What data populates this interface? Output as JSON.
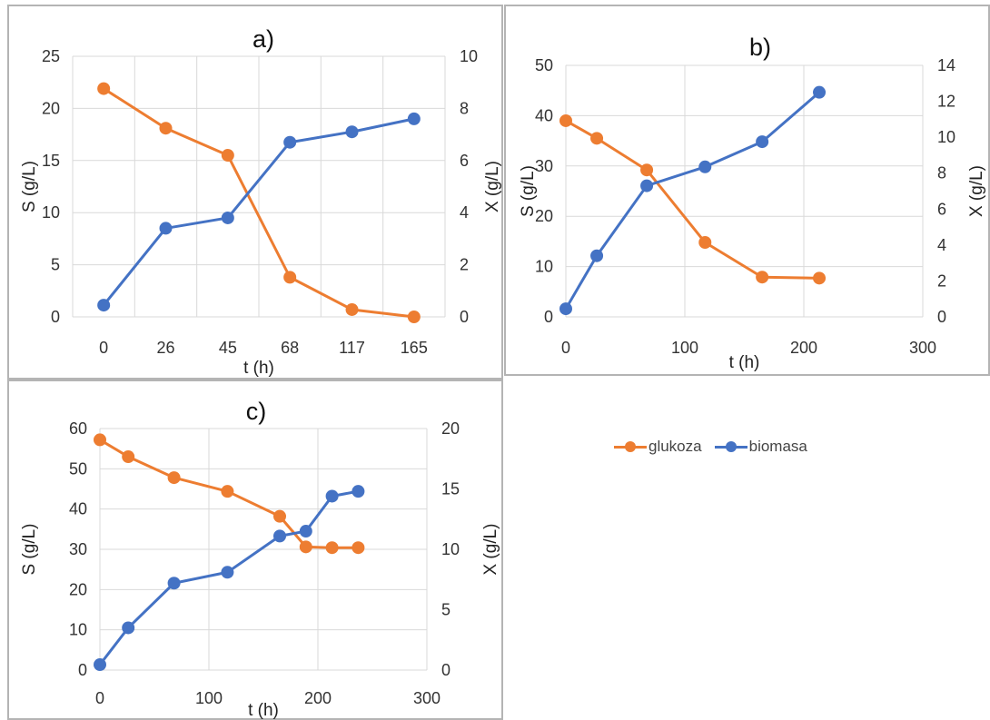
{
  "colors": {
    "glukoza": "#ed7d31",
    "biomasa": "#4472c4",
    "grid": "#d9d9d9",
    "border": "#b4b4b4"
  },
  "legend": {
    "items": [
      {
        "label": "glukoza",
        "color": "#ed7d31"
      },
      {
        "label": "biomasa",
        "color": "#4472c4"
      }
    ],
    "position": "right-middle"
  },
  "chart_data": [
    {
      "id": "a",
      "type": "line",
      "title": "a)",
      "xlabel": "t (h)",
      "ylabel": "S (g/L)",
      "y2label": "X (g/L)",
      "x_axis_type": "category",
      "categories": [
        "0",
        "26",
        "45",
        "68",
        "117",
        "165"
      ],
      "ylim": [
        0,
        25
      ],
      "yticks": [
        0,
        5,
        10,
        15,
        20,
        25
      ],
      "y2lim": [
        0,
        10
      ],
      "y2ticks": [
        0,
        2,
        4,
        6,
        8,
        10
      ],
      "grid": true,
      "series": [
        {
          "name": "glukoza",
          "axis": "left",
          "values": [
            21.9,
            18.1,
            15.5,
            3.8,
            0.7,
            0.0
          ]
        },
        {
          "name": "biomasa",
          "axis": "right",
          "values": [
            0.45,
            3.4,
            3.8,
            6.7,
            7.1,
            7.6
          ]
        }
      ]
    },
    {
      "id": "b",
      "type": "scatter",
      "title": "b)",
      "xlabel": "t (h)",
      "ylabel": "S (g/L)",
      "y2label": "X (g/L)",
      "xlim": [
        0,
        300
      ],
      "xticks": [
        0,
        100,
        200,
        300
      ],
      "ylim": [
        0,
        50
      ],
      "yticks": [
        0,
        10,
        20,
        30,
        40,
        50
      ],
      "y2lim": [
        0,
        14
      ],
      "y2ticks": [
        0,
        2,
        4,
        6,
        8,
        10,
        12,
        14
      ],
      "grid": true,
      "series": [
        {
          "name": "glukoza",
          "axis": "left",
          "x": [
            0,
            26,
            68,
            117,
            165,
            213
          ],
          "values": [
            39.0,
            35.5,
            29.2,
            14.8,
            7.9,
            7.7
          ]
        },
        {
          "name": "biomasa",
          "axis": "right",
          "x": [
            0,
            26,
            68,
            117,
            165,
            213
          ],
          "values": [
            0.45,
            3.4,
            7.3,
            8.35,
            9.75,
            12.5
          ]
        }
      ]
    },
    {
      "id": "c",
      "type": "scatter",
      "title": "c)",
      "xlabel": "t (h)",
      "ylabel": "S (g/L)",
      "y2label": "X (g/L)",
      "xlim": [
        0,
        300
      ],
      "xticks": [
        0,
        100,
        200,
        300
      ],
      "ylim": [
        0,
        60
      ],
      "yticks": [
        0,
        10,
        20,
        30,
        40,
        50,
        60
      ],
      "y2lim": [
        0,
        20
      ],
      "y2ticks": [
        0,
        5,
        10,
        15,
        20
      ],
      "grid": true,
      "series": [
        {
          "name": "glukoza",
          "axis": "left",
          "x": [
            0,
            26,
            68,
            117,
            165,
            189,
            213,
            237
          ],
          "values": [
            57.2,
            53.0,
            47.8,
            44.4,
            38.2,
            30.6,
            30.4,
            30.4
          ]
        },
        {
          "name": "biomasa",
          "axis": "right",
          "x": [
            0,
            26,
            68,
            117,
            165,
            189,
            213,
            237
          ],
          "values": [
            0.45,
            3.5,
            7.2,
            8.1,
            11.1,
            11.5,
            14.4,
            14.8
          ]
        }
      ]
    }
  ]
}
